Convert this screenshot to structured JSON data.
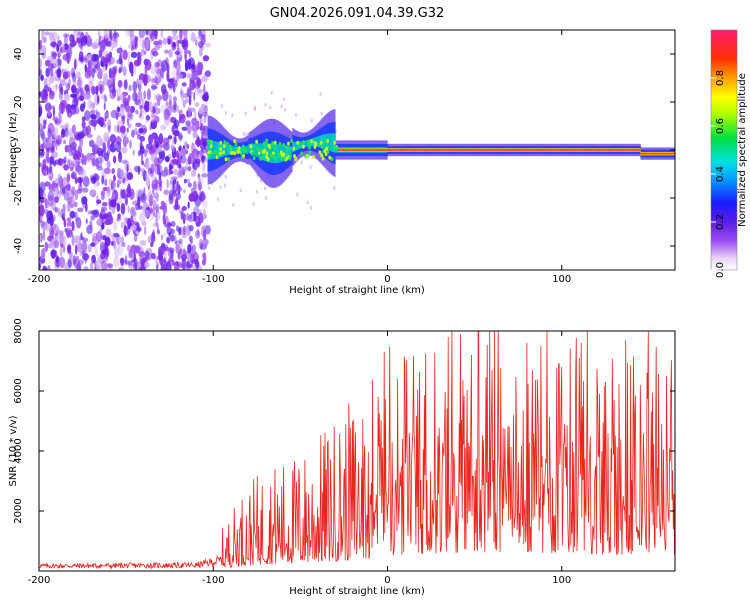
{
  "title": "GN04.2026.091.04.39.G32",
  "chart_data": [
    {
      "type": "heatmap",
      "xlabel": "Height of straight line (km)",
      "ylabel": "Frequency (Hz)",
      "xlim": [
        -200,
        165
      ],
      "ylim": [
        -50,
        50
      ],
      "xticks": [
        "-200",
        "-100",
        "0",
        "100"
      ],
      "yticks": [
        "-40",
        "-20",
        "0",
        "20",
        "40"
      ],
      "colorbar": {
        "label": "Normalized spectral amplitude",
        "ticks": [
          "0.0",
          "0.2",
          "0.4",
          "0.6",
          "0.8"
        ],
        "range": [
          0,
          1
        ]
      },
      "features": {
        "noise_region_km": [
          -200,
          -103
        ],
        "ridge_start_km": -103,
        "ridge_frequency_hz": 0
      }
    },
    {
      "type": "line",
      "xlabel": "Height of straight line (km)",
      "ylabel": "SNR (10 * v/v)",
      "xlim": [
        -200,
        165
      ],
      "ylim": [
        0,
        8000
      ],
      "xticks": [
        "-200",
        "-100",
        "0",
        "100"
      ],
      "yticks": [
        "2000",
        "4000",
        "6000",
        "8000"
      ],
      "series_color": "#e8251f",
      "envelope": {
        "x": [
          -200,
          -110,
          -95,
          -85,
          -70,
          -50,
          -30,
          -15,
          -5,
          5,
          20,
          40,
          60,
          80,
          100,
          120,
          140,
          165
        ],
        "y": [
          280,
          320,
          600,
          1100,
          1500,
          1700,
          2200,
          2600,
          3200,
          3400,
          3700,
          4000,
          4200,
          4100,
          3900,
          3700,
          3500,
          3400
        ]
      },
      "peaks": [
        {
          "x": -2,
          "y": 7300
        },
        {
          "x": 10,
          "y": 6800
        },
        {
          "x": 35,
          "y": 7800
        },
        {
          "x": 42,
          "y": 7900
        },
        {
          "x": 48,
          "y": 7200
        },
        {
          "x": 60,
          "y": 6700
        },
        {
          "x": 80,
          "y": 7600
        },
        {
          "x": 88,
          "y": 7500
        },
        {
          "x": 100,
          "y": 6800
        },
        {
          "x": 110,
          "y": 7100
        },
        {
          "x": 125,
          "y": 6300
        },
        {
          "x": 145,
          "y": 6200
        },
        {
          "x": 160,
          "y": 6500
        },
        {
          "x": 165,
          "y": 5800
        }
      ]
    }
  ]
}
